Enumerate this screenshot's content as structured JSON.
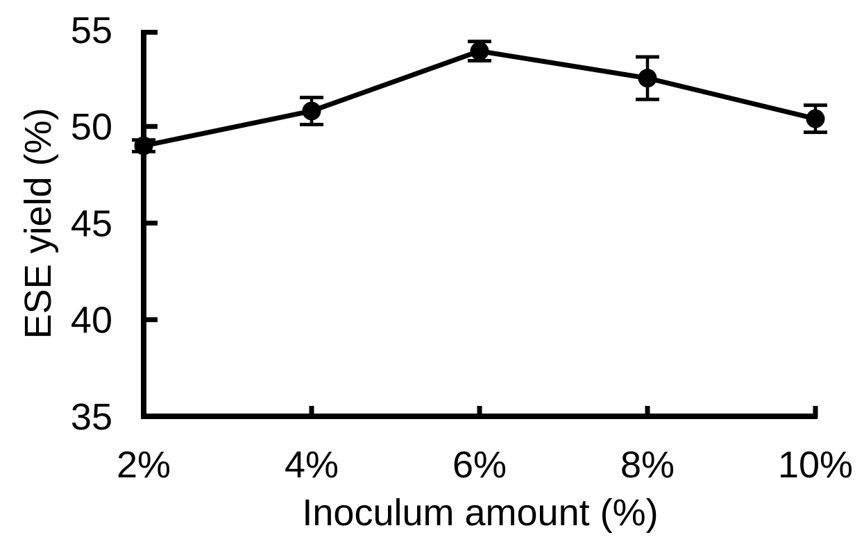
{
  "figure": {
    "background": "#ffffff",
    "ink_color": "#000000"
  },
  "chart_data": {
    "type": "line",
    "title": "",
    "xlabel": "Inoculum amount (%)",
    "ylabel": "ESE yield (%)",
    "categories": [
      "2%",
      "4%",
      "6%",
      "8%",
      "10%"
    ],
    "series": [
      {
        "name": "ESE yield",
        "values": [
          49.0,
          50.8,
          53.9,
          52.5,
          50.4
        ],
        "errors": [
          0.3,
          0.7,
          0.5,
          1.1,
          0.7
        ]
      }
    ],
    "ylim": [
      35,
      55
    ],
    "yticks": [
      35,
      40,
      45,
      50,
      55
    ],
    "grid": false,
    "legend": "none",
    "marker": "filled-circle",
    "error_bars": true,
    "line_color": "#000000",
    "marker_color": "#000000"
  }
}
